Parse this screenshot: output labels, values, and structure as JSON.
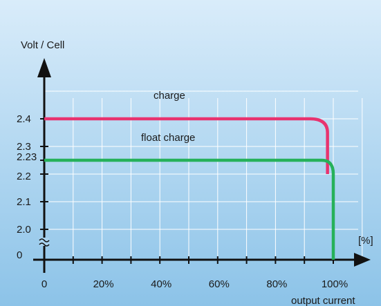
{
  "chart_data": {
    "type": "line",
    "ylabel": "Volt / Cell",
    "xlabel": "output current",
    "x_unit_label": "[%]",
    "x_ticks": [
      "0",
      "20%",
      "40%",
      "60%",
      "80%",
      "100%"
    ],
    "x_tick_values": [
      0,
      20,
      40,
      60,
      80,
      100
    ],
    "y_ticks": [
      "0",
      "2.0",
      "2.1",
      "2.2",
      "2.23",
      "2.3",
      "2.4"
    ],
    "y_tick_values": [
      1.9,
      2.0,
      2.1,
      2.2,
      2.23,
      2.3,
      2.4
    ],
    "y_axis_break": true,
    "xlim": [
      0,
      115
    ],
    "ylim": [
      1.9,
      2.65
    ],
    "grid": true,
    "series": [
      {
        "name": "charge",
        "color": "#e8336f",
        "x": [
          0,
          92,
          96,
          98,
          98
        ],
        "y": [
          2.4,
          2.4,
          2.39,
          2.35,
          2.2
        ]
      },
      {
        "name": "float charge",
        "color": "#26b15a",
        "x": [
          0,
          96,
          99,
          100,
          100
        ],
        "y": [
          2.25,
          2.25,
          2.24,
          2.2,
          1.9
        ]
      }
    ],
    "colors": {
      "background_top": "#d9ecfa",
      "background_bottom": "#8cc3e8",
      "grid": "#ffffff",
      "axis": "#111111"
    }
  }
}
